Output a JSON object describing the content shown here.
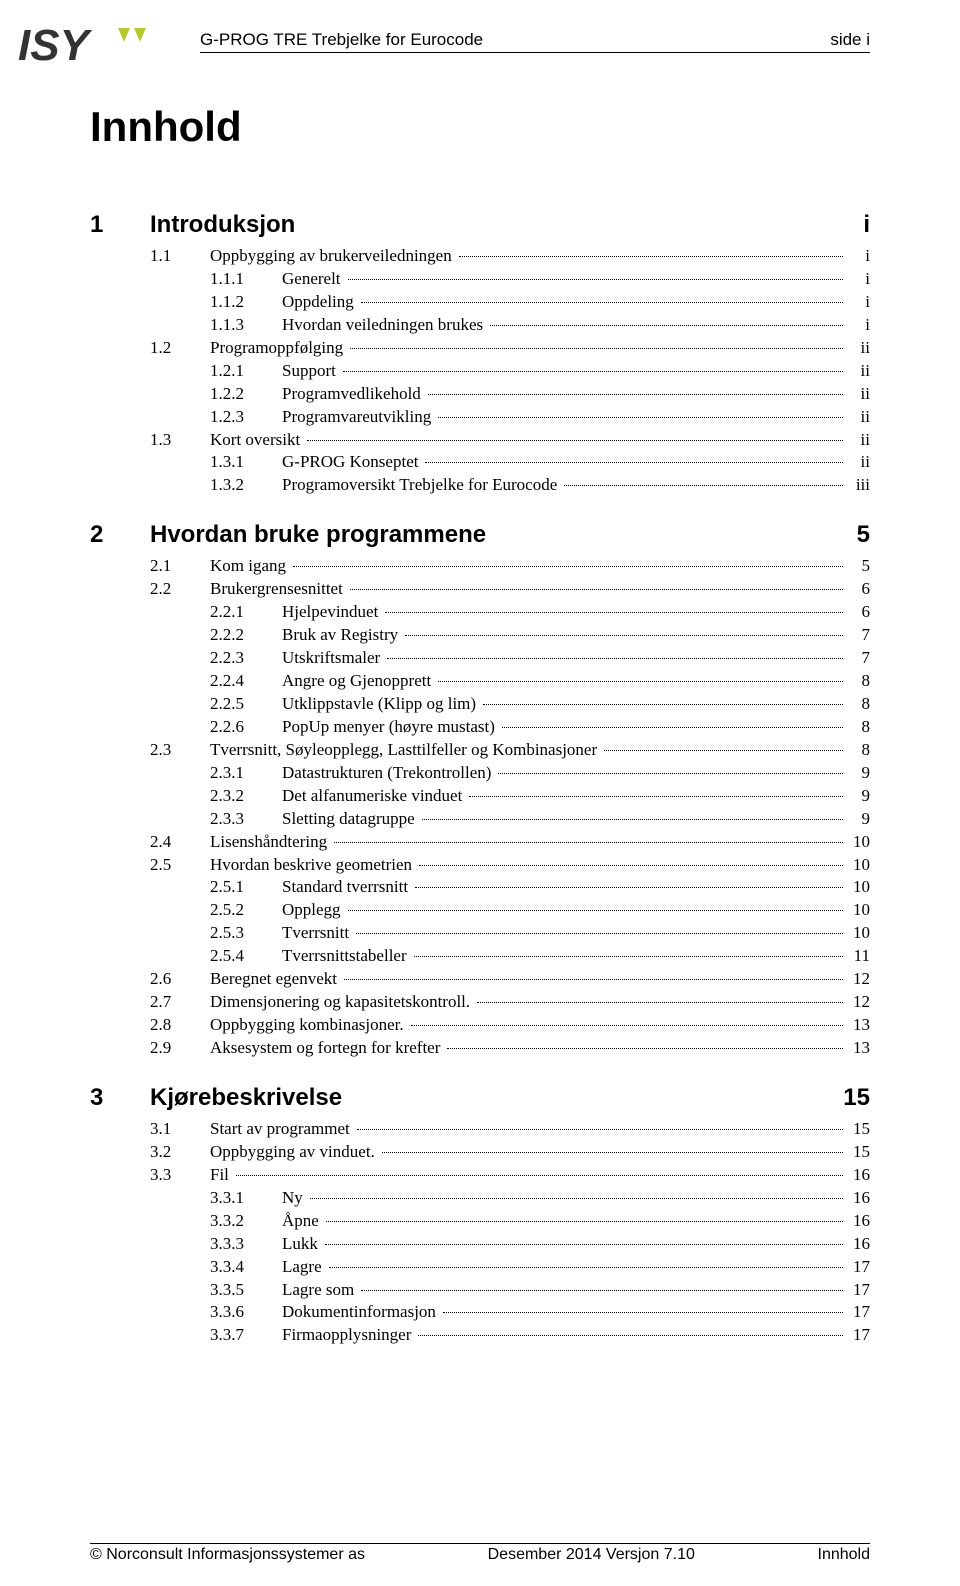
{
  "header": {
    "title": "G-PROG TRE Trebjelke for Eurocode",
    "page_label": "side i"
  },
  "logo": {
    "text": "ISY",
    "accent_color": "#b8c92f",
    "text_color": "#333333"
  },
  "doc_title": "Innhold",
  "chapters": [
    {
      "num": "1",
      "title": "Introduksjon",
      "page": "i",
      "entries": [
        {
          "level": 1,
          "num": "1.1",
          "text": "Oppbygging av brukerveiledningen",
          "page": "i"
        },
        {
          "level": 2,
          "num": "1.1.1",
          "text": "Generelt",
          "page": "i"
        },
        {
          "level": 2,
          "num": "1.1.2",
          "text": "Oppdeling",
          "page": "i"
        },
        {
          "level": 2,
          "num": "1.1.3",
          "text": "Hvordan veiledningen brukes",
          "page": "i"
        },
        {
          "level": 1,
          "num": "1.2",
          "text": "Programoppfølging",
          "page": "ii"
        },
        {
          "level": 2,
          "num": "1.2.1",
          "text": "Support",
          "page": "ii"
        },
        {
          "level": 2,
          "num": "1.2.2",
          "text": "Programvedlikehold",
          "page": "ii"
        },
        {
          "level": 2,
          "num": "1.2.3",
          "text": "Programvareutvikling",
          "page": "ii"
        },
        {
          "level": 1,
          "num": "1.3",
          "text": "Kort oversikt",
          "page": "ii"
        },
        {
          "level": 2,
          "num": "1.3.1",
          "text": "G-PROG Konseptet",
          "page": "ii"
        },
        {
          "level": 2,
          "num": "1.3.2",
          "text": "Programoversikt Trebjelke for Eurocode",
          "page": "iii"
        }
      ]
    },
    {
      "num": "2",
      "title": "Hvordan bruke programmene",
      "page": "5",
      "entries": [
        {
          "level": 1,
          "num": "2.1",
          "text": "Kom igang",
          "page": "5"
        },
        {
          "level": 1,
          "num": "2.2",
          "text": "Brukergrensesnittet",
          "page": "6"
        },
        {
          "level": 2,
          "num": "2.2.1",
          "text": "Hjelpevinduet",
          "page": "6"
        },
        {
          "level": 2,
          "num": "2.2.2",
          "text": "Bruk av Registry",
          "page": "7"
        },
        {
          "level": 2,
          "num": "2.2.3",
          "text": "Utskriftsmaler",
          "page": "7"
        },
        {
          "level": 2,
          "num": "2.2.4",
          "text": "Angre og Gjenopprett",
          "page": "8"
        },
        {
          "level": 2,
          "num": "2.2.5",
          "text": "Utklippstavle (Klipp og lim)",
          "page": "8"
        },
        {
          "level": 2,
          "num": "2.2.6",
          "text": "PopUp menyer (høyre mustast)",
          "page": "8"
        },
        {
          "level": 1,
          "num": "2.3",
          "text": "Tverrsnitt, Søyleopplegg, Lasttilfeller og Kombinasjoner",
          "page": "8"
        },
        {
          "level": 2,
          "num": "2.3.1",
          "text": "Datastrukturen (Trekontrollen)",
          "page": "9"
        },
        {
          "level": 2,
          "num": "2.3.2",
          "text": "Det alfanumeriske vinduet",
          "page": "9"
        },
        {
          "level": 2,
          "num": "2.3.3",
          "text": "Sletting datagruppe",
          "page": "9"
        },
        {
          "level": 1,
          "num": "2.4",
          "text": "Lisenshåndtering",
          "page": "10"
        },
        {
          "level": 1,
          "num": "2.5",
          "text": "Hvordan beskrive geometrien",
          "page": "10"
        },
        {
          "level": 2,
          "num": "2.5.1",
          "text": "Standard tverrsnitt",
          "page": "10"
        },
        {
          "level": 2,
          "num": "2.5.2",
          "text": "Opplegg",
          "page": "10"
        },
        {
          "level": 2,
          "num": "2.5.3",
          "text": "Tverrsnitt",
          "page": "10"
        },
        {
          "level": 2,
          "num": "2.5.4",
          "text": "Tverrsnittstabeller",
          "page": "11"
        },
        {
          "level": 1,
          "num": "2.6",
          "text": "Beregnet egenvekt",
          "page": "12"
        },
        {
          "level": 1,
          "num": "2.7",
          "text": "Dimensjonering og kapasitetskontroll.",
          "page": "12"
        },
        {
          "level": 1,
          "num": "2.8",
          "text": "Oppbygging kombinasjoner.",
          "page": "13"
        },
        {
          "level": 1,
          "num": "2.9",
          "text": "Aksesystem og fortegn for krefter",
          "page": "13"
        }
      ]
    },
    {
      "num": "3",
      "title": "Kjørebeskrivelse",
      "page": "15",
      "entries": [
        {
          "level": 1,
          "num": "3.1",
          "text": "Start av programmet",
          "page": "15"
        },
        {
          "level": 1,
          "num": "3.2",
          "text": "Oppbygging av vinduet.",
          "page": "15"
        },
        {
          "level": 1,
          "num": "3.3",
          "text": "Fil",
          "page": "16"
        },
        {
          "level": 2,
          "num": "3.3.1",
          "text": "Ny",
          "page": "16"
        },
        {
          "level": 2,
          "num": "3.3.2",
          "text": "Åpne",
          "page": "16"
        },
        {
          "level": 2,
          "num": "3.3.3",
          "text": "Lukk",
          "page": "16"
        },
        {
          "level": 2,
          "num": "3.3.4",
          "text": "Lagre",
          "page": "17"
        },
        {
          "level": 2,
          "num": "3.3.5",
          "text": "Lagre som",
          "page": "17"
        },
        {
          "level": 2,
          "num": "3.3.6",
          "text": "Dokumentinformasjon",
          "page": "17"
        },
        {
          "level": 2,
          "num": "3.3.7",
          "text": "Firmaopplysninger",
          "page": "17"
        }
      ]
    }
  ],
  "footer": {
    "left": "© Norconsult Informasjonssystemer as",
    "center": "Desember 2014 Versjon 7.10",
    "right": "Innhold"
  }
}
